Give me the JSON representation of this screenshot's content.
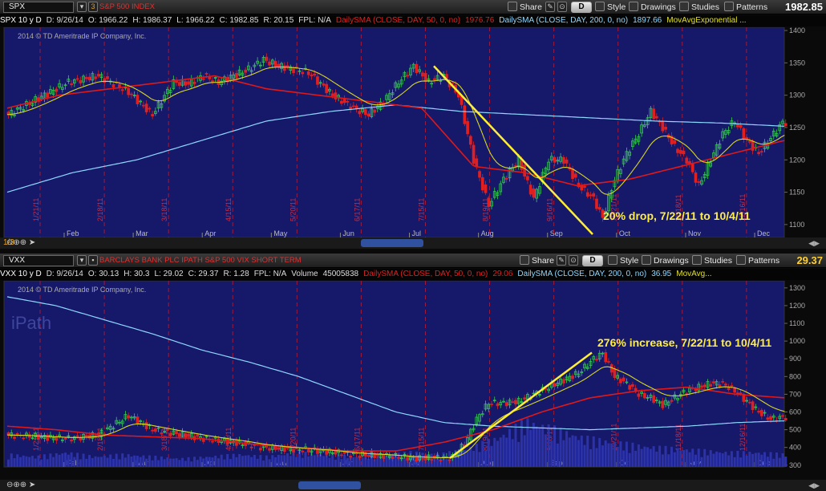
{
  "top": {
    "symbol": "SPX",
    "description": "S&P 500 INDEX",
    "last_price": "1982.85",
    "toolbar": {
      "share": "Share",
      "period": "D",
      "style": "Style",
      "drawings": "Drawings",
      "studies": "Studies",
      "patterns": "Patterns"
    },
    "info": {
      "title": "SPX 10 y D",
      "date": "D: 9/26/14",
      "open": "O: 1966.22",
      "high": "H: 1986.37",
      "low": "L: 1966.22",
      "close": "C: 1982.85",
      "range": "R: 20.15",
      "fpl": "FPL: N/A",
      "sma50": "DailySMA (CLOSE, DAY, 50, 0, no)",
      "sma50_val": "1976.76",
      "sma200": "DailySMA (CLOSE, DAY, 200, 0, no)",
      "sma200_val": "1897.66",
      "movavg": "MovAvgExponential ..."
    },
    "copyright": "2014 © TD Ameritrade IP Company, Inc.",
    "annotation": "20% drop, 7/22/11 to 10/4/11",
    "page_label": "1/3"
  },
  "bottom": {
    "symbol": "VXX",
    "description": "BARCLAYS BANK PLC IPATH S&P 500 VIX SHORT TERM",
    "last_price": "29.37",
    "toolbar": {
      "share": "Share",
      "period": "D",
      "style": "Style",
      "drawings": "Drawings",
      "studies": "Studies",
      "patterns": "Patterns"
    },
    "info": {
      "title": "VXX 10 y D",
      "date": "D: 9/26/14",
      "open": "O: 30.13",
      "high": "H: 30.3",
      "low": "L: 29.02",
      "close": "C: 29.37",
      "range": "R: 1.28",
      "fpl": "FPL: N/A",
      "volume": "Volume",
      "volume_val": "45005838",
      "sma50": "DailySMA (CLOSE, DAY, 50, 0, no)",
      "sma50_val": "29.06",
      "sma200": "DailySMA (CLOSE, DAY, 200, 0, no)",
      "sma200_val": "36.95",
      "movavg": "MovAvg..."
    },
    "copyright": "2014 © TD Ameritrade IP Company, Inc.",
    "watermark": "iPath",
    "annotation": "276% increase, 7/22/11 to 10/4/11"
  },
  "colors": {
    "plot_bg": "#16186a",
    "up_candle": "#34d24a",
    "down_candle": "#e02020",
    "sma50": "#e01818",
    "sma200": "#8fd8ff",
    "ema": "#d8d820",
    "trend": "#ffee33",
    "grid_v": "#a01a3a"
  },
  "chart_data": [
    {
      "type": "candlestick",
      "title": "SPX",
      "months": [
        "Feb",
        "Mar",
        "Apr",
        "May",
        "Jun",
        "Jul",
        "Aug",
        "Sep",
        "Oct",
        "Nov",
        "Dec"
      ],
      "grid_labels": [
        "1/21/11",
        "2/18/11",
        "3/18/11",
        "4/15/11",
        "5/20/11",
        "6/17/11",
        "7/15/11",
        "8/19/11",
        "9/16/11",
        "10/21/11",
        "11/18/11",
        "12/16/11"
      ],
      "yticks": [
        1100,
        1150,
        1200,
        1250,
        1300,
        1350,
        1400
      ],
      "ylim": [
        1080,
        1405
      ],
      "close_anchors": [
        [
          0,
          1270
        ],
        [
          10,
          1295
        ],
        [
          20,
          1320
        ],
        [
          30,
          1330
        ],
        [
          40,
          1305
        ],
        [
          48,
          1270
        ],
        [
          55,
          1320
        ],
        [
          60,
          1318
        ],
        [
          65,
          1330
        ],
        [
          70,
          1320
        ],
        [
          80,
          1340
        ],
        [
          85,
          1355
        ],
        [
          90,
          1345
        ],
        [
          100,
          1335
        ],
        [
          108,
          1300
        ],
        [
          115,
          1280
        ],
        [
          120,
          1270
        ],
        [
          125,
          1290
        ],
        [
          130,
          1320
        ],
        [
          135,
          1345
        ],
        [
          140,
          1320
        ],
        [
          145,
          1330
        ],
        [
          150,
          1300
        ],
        [
          155,
          1200
        ],
        [
          160,
          1130
        ],
        [
          165,
          1170
        ],
        [
          170,
          1200
        ],
        [
          175,
          1140
        ],
        [
          180,
          1200
        ],
        [
          185,
          1200
        ],
        [
          190,
          1160
        ],
        [
          195,
          1140
        ],
        [
          198,
          1110
        ],
        [
          202,
          1170
        ],
        [
          206,
          1210
        ],
        [
          210,
          1240
        ],
        [
          214,
          1275
        ],
        [
          218,
          1250
        ],
        [
          222,
          1220
        ],
        [
          226,
          1200
        ],
        [
          230,
          1160
        ],
        [
          234,
          1200
        ],
        [
          238,
          1240
        ],
        [
          242,
          1260
        ],
        [
          246,
          1230
        ],
        [
          250,
          1210
        ],
        [
          255,
          1240
        ],
        [
          258,
          1258
        ]
      ],
      "sma50": [
        1280,
        1300,
        1310,
        1320,
        1330,
        1310,
        1300,
        1290,
        1280,
        1190,
        1180,
        1160,
        1170,
        1190,
        1210,
        1230
      ],
      "sma200": [
        1150,
        1180,
        1200,
        1230,
        1260,
        1275,
        1285,
        1275,
        1270,
        1265,
        1260,
        1257,
        1252
      ],
      "trendline": {
        "from": [
          "7/22/11",
          1345
        ],
        "to": [
          "10/4/11",
          1085
        ]
      },
      "annotation": "20% drop, 7/22/11 to 10/4/11"
    },
    {
      "type": "candlestick",
      "title": "VXX",
      "months": [
        "Feb",
        "Mar",
        "Apr",
        "May",
        "Jun",
        "Jul",
        "Aug",
        "Sep",
        "Oct",
        "Nov",
        "Dec"
      ],
      "grid_labels": [
        "1/21/11",
        "2/18/11",
        "3/18/11",
        "4/15/11",
        "5/20/11",
        "6/17/11",
        "7/15/11",
        "8/19/11",
        "9/16/11",
        "10/21/11",
        "11/18/11",
        "12/16/11"
      ],
      "yticks": [
        300,
        400,
        500,
        600,
        700,
        800,
        900,
        1000,
        1100,
        1200,
        1300
      ],
      "ylim": [
        290,
        1340
      ],
      "close_anchors": [
        [
          0,
          470
        ],
        [
          10,
          460
        ],
        [
          20,
          450
        ],
        [
          30,
          470
        ],
        [
          40,
          580
        ],
        [
          48,
          500
        ],
        [
          55,
          480
        ],
        [
          65,
          450
        ],
        [
          75,
          430
        ],
        [
          85,
          400
        ],
        [
          95,
          390
        ],
        [
          105,
          380
        ],
        [
          115,
          360
        ],
        [
          125,
          355
        ],
        [
          135,
          340
        ],
        [
          145,
          340
        ],
        [
          148,
          345
        ],
        [
          152,
          420
        ],
        [
          156,
          560
        ],
        [
          160,
          650
        ],
        [
          165,
          650
        ],
        [
          170,
          660
        ],
        [
          175,
          700
        ],
        [
          180,
          740
        ],
        [
          185,
          780
        ],
        [
          190,
          820
        ],
        [
          195,
          900
        ],
        [
          198,
          930
        ],
        [
          202,
          800
        ],
        [
          206,
          760
        ],
        [
          210,
          700
        ],
        [
          214,
          680
        ],
        [
          218,
          640
        ],
        [
          222,
          680
        ],
        [
          226,
          720
        ],
        [
          230,
          740
        ],
        [
          234,
          760
        ],
        [
          238,
          760
        ],
        [
          242,
          720
        ],
        [
          246,
          660
        ],
        [
          250,
          600
        ],
        [
          254,
          560
        ],
        [
          258,
          570
        ]
      ],
      "sma50": [
        520,
        500,
        470,
        460,
        450,
        420,
        400,
        380,
        380,
        430,
        500,
        600,
        680,
        720,
        740,
        700,
        680
      ],
      "sma200": [
        1250,
        1200,
        1120,
        1040,
        950,
        880,
        800,
        700,
        600,
        540,
        520,
        510,
        500,
        510,
        520,
        540,
        550
      ],
      "volume": [
        6,
        5,
        7,
        5,
        6,
        5,
        4,
        5,
        6,
        5,
        7,
        6,
        5,
        6,
        7,
        6,
        9,
        14,
        22,
        18,
        14,
        12,
        10,
        9,
        8,
        7,
        7,
        6
      ],
      "trendline": {
        "from": [
          "7/22/11",
          340
        ],
        "to": [
          "10/4/11",
          935
        ]
      },
      "annotation": "276% increase, 7/22/11 to 10/4/11"
    }
  ]
}
